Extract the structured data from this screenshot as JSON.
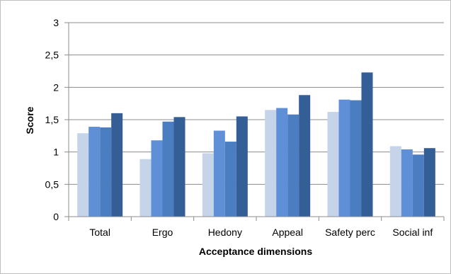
{
  "chart_data": {
    "type": "bar",
    "title": "",
    "xlabel": "Acceptance dimensions",
    "ylabel": "Score",
    "ylim": [
      0,
      3
    ],
    "yticks": [
      0,
      0.5,
      1,
      1.5,
      2,
      2.5,
      3
    ],
    "ytick_labels": [
      "0",
      "0,5",
      "1",
      "1,5",
      "2",
      "2,5",
      "3"
    ],
    "grid": true,
    "legend": "none",
    "categories": [
      "Total",
      "Ergo",
      "Hedony",
      "Appeal",
      "Safety perc",
      "Social inf"
    ],
    "series": [
      {
        "color": "#c6d4ea",
        "values": [
          1.29,
          0.89,
          0.98,
          1.65,
          1.62,
          1.09
        ]
      },
      {
        "color": "#5f8fd6",
        "values": [
          1.39,
          1.18,
          1.33,
          1.68,
          1.81,
          1.04
        ]
      },
      {
        "color": "#4b7ec0",
        "values": [
          1.38,
          1.47,
          1.16,
          1.58,
          1.8,
          0.96
        ]
      },
      {
        "color": "#335e96",
        "values": [
          1.6,
          1.54,
          1.55,
          1.88,
          2.23,
          1.06
        ]
      }
    ]
  }
}
